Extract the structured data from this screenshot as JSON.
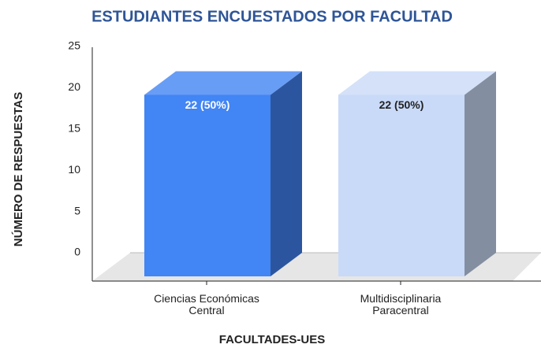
{
  "chart_data": {
    "type": "bar3d",
    "title": "ESTUDIANTES ENCUESTADOS POR FACULTAD",
    "x_label": "FACULTADES-UES",
    "y_label": "NÚMERO DE RESPUESTAS",
    "categories": [
      "Ciencias Económicas Central",
      "Multidisciplinaria Paracentral"
    ],
    "values": [
      22,
      22
    ],
    "value_labels": [
      "22 (50%)",
      "22 (50%)"
    ],
    "colors": [
      "#4285f4",
      "#c9daf8"
    ],
    "label_colors": [
      "#ffffff",
      "#222222"
    ],
    "ylim": [
      0,
      25
    ],
    "yticks": [
      0,
      5,
      10,
      15,
      20,
      25
    ],
    "grid": false
  }
}
